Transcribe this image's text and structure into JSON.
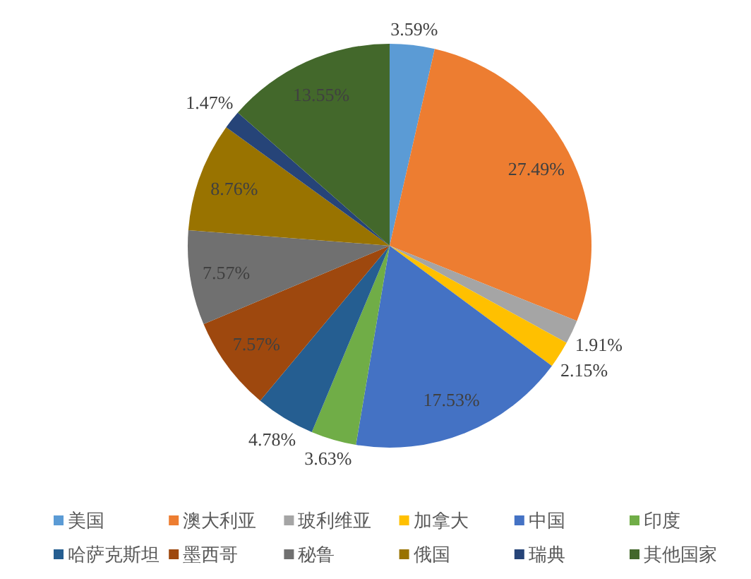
{
  "chart_data": {
    "type": "pie",
    "categories": [
      "美国",
      "澳大利亚",
      "玻利维亚",
      "加拿大",
      "中国",
      "印度",
      "哈萨克斯坦",
      "墨西哥",
      "秘鲁",
      "俄国",
      "瑞典",
      "其他国家"
    ],
    "values": [
      3.59,
      27.49,
      1.91,
      2.15,
      17.53,
      3.63,
      4.78,
      7.57,
      7.57,
      8.76,
      1.47,
      13.55
    ],
    "colors": [
      "#5b9bd5",
      "#ed7d31",
      "#a5a5a5",
      "#ffc000",
      "#4472c4",
      "#70ad47",
      "#255e91",
      "#9e480e",
      "#707070",
      "#997300",
      "#264478",
      "#43682b"
    ],
    "value_labels": [
      "3.59%",
      "27.49%",
      "1.91%",
      "2.15%",
      "17.53%",
      "3.63%",
      "4.78%",
      "7.57%",
      "7.57%",
      "8.76%",
      "1.47%",
      "13.55%"
    ],
    "legend": "bottom"
  }
}
